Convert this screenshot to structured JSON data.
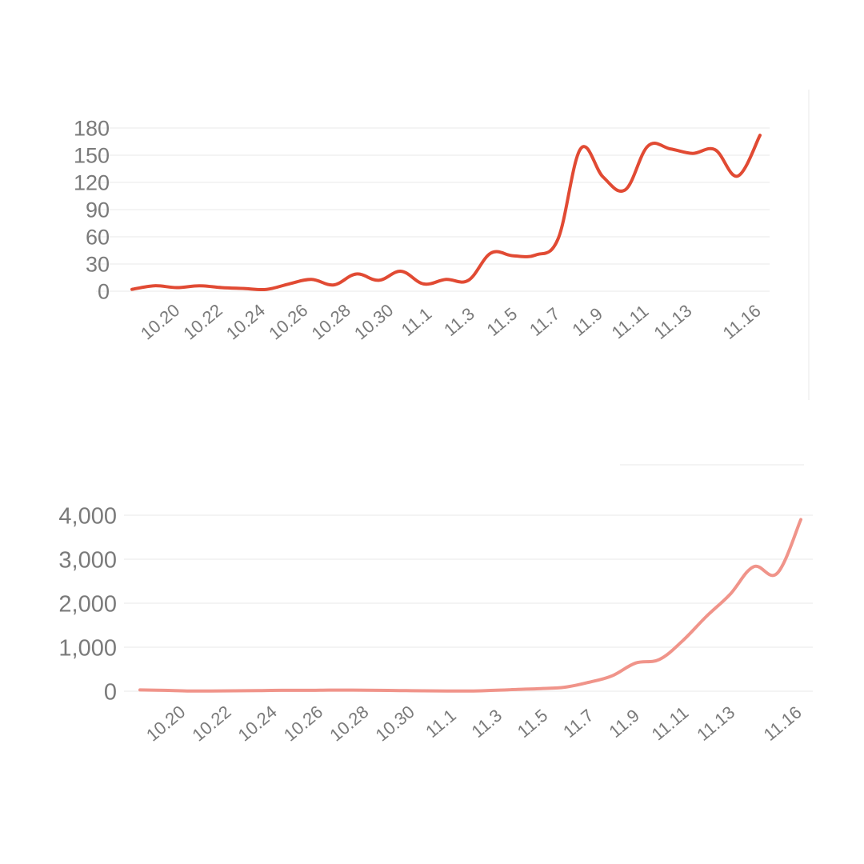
{
  "chart_data": [
    {
      "type": "line",
      "color": "#e14a33",
      "ylim": [
        0,
        180
      ],
      "yticks": [
        0,
        30,
        60,
        90,
        120,
        150,
        180
      ],
      "ytick_labels": [
        "0",
        "30",
        "60",
        "90",
        "120",
        "150",
        "180"
      ],
      "xtick_labels": [
        "10.20",
        "10.22",
        "10.24",
        "10.26",
        "10.28",
        "10.30",
        "11.1",
        "11.3",
        "11.5",
        "11.7",
        "11.9",
        "11.11",
        "11.13",
        "11.16"
      ],
      "x": [
        "10.19",
        "10.20",
        "10.21",
        "10.22",
        "10.23",
        "10.24",
        "10.25",
        "10.26",
        "10.27",
        "10.28",
        "10.29",
        "10.30",
        "10.31",
        "11.1",
        "11.2",
        "11.3",
        "11.4",
        "11.5",
        "11.6",
        "11.7",
        "11.8",
        "11.9",
        "11.10",
        "11.11",
        "11.12",
        "11.13",
        "11.14",
        "11.15",
        "11.16"
      ],
      "series": [
        {
          "values": [
            2,
            6,
            4,
            6,
            4,
            3,
            2,
            8,
            13,
            7,
            19,
            12,
            22,
            8,
            13,
            12,
            42,
            39,
            40,
            58,
            157,
            126,
            112,
            160,
            157,
            152,
            156,
            127,
            172
          ]
        }
      ]
    },
    {
      "type": "line",
      "color": "#f0948a",
      "ylim": [
        0,
        4000
      ],
      "yticks": [
        0,
        1000,
        2000,
        3000,
        4000
      ],
      "ytick_labels": [
        "0",
        "1,000",
        "2,000",
        "3,000",
        "4,000"
      ],
      "xtick_labels": [
        "10.20",
        "10.22",
        "10.24",
        "10.26",
        "10.28",
        "10.30",
        "11.1",
        "11.3",
        "11.5",
        "11.7",
        "11.9",
        "11.11",
        "11.13",
        "11.16"
      ],
      "x": [
        "10.19",
        "10.20",
        "10.21",
        "10.22",
        "10.23",
        "10.24",
        "10.25",
        "10.26",
        "10.27",
        "10.28",
        "10.29",
        "10.30",
        "10.31",
        "11.1",
        "11.2",
        "11.3",
        "11.4",
        "11.5",
        "11.6",
        "11.7",
        "11.8",
        "11.9",
        "11.10",
        "11.11",
        "11.12",
        "11.13",
        "11.14",
        "11.15",
        "11.16"
      ],
      "series": [
        {
          "values": [
            30,
            20,
            5,
            5,
            10,
            15,
            20,
            20,
            25,
            25,
            20,
            15,
            10,
            5,
            5,
            20,
            40,
            60,
            90,
            200,
            350,
            640,
            720,
            1150,
            1700,
            2200,
            2830,
            2680,
            3900
          ]
        }
      ]
    }
  ]
}
